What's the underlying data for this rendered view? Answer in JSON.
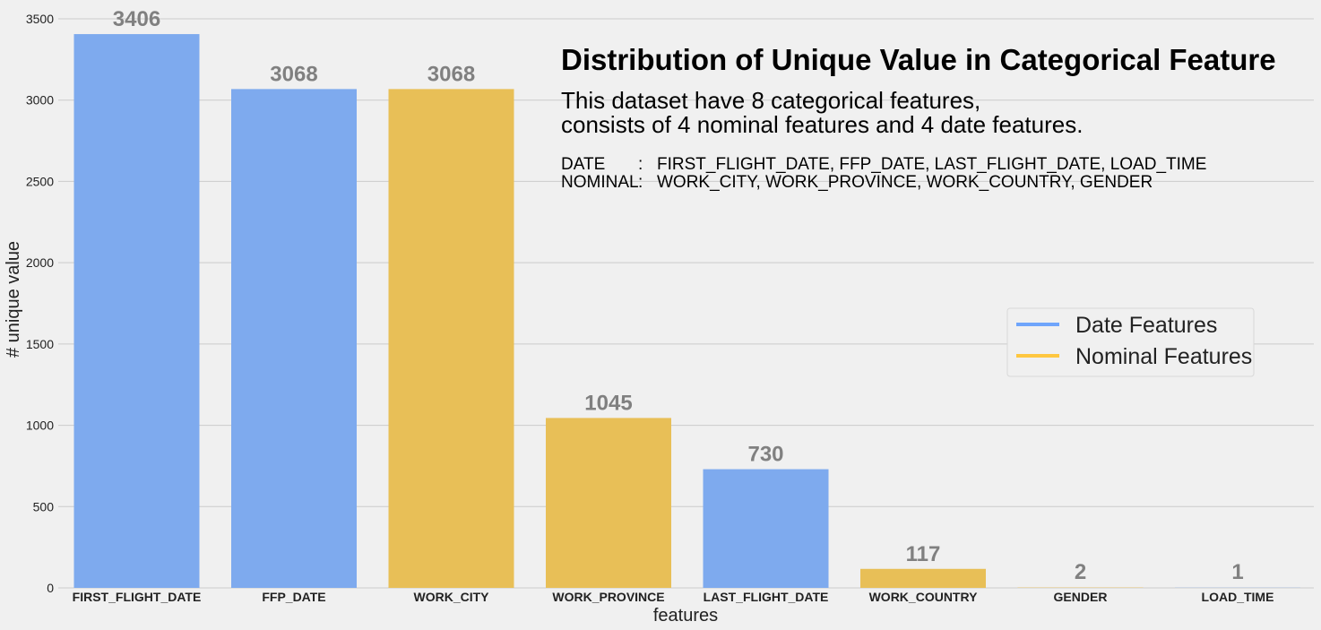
{
  "chart_data": {
    "type": "bar",
    "title": "Distribution of Unique Value in Categorical Feature",
    "subtitle_lines": [
      "This dataset have 8 categorical features,",
      "consists of 4 nominal features and 4 date features."
    ],
    "notes": [
      {
        "key": "DATE",
        "sep": ":",
        "value": "FIRST_FLIGHT_DATE, FFP_DATE, LAST_FLIGHT_DATE, LOAD_TIME"
      },
      {
        "key": "NOMINAL",
        "sep": ":",
        "value": "WORK_CITY, WORK_PROVINCE, WORK_COUNTRY, GENDER"
      }
    ],
    "xlabel": "features",
    "ylabel": "# unique value",
    "ylim": [
      0,
      3500
    ],
    "yticks": [
      0,
      500,
      1000,
      1500,
      2000,
      2500,
      3000,
      3500
    ],
    "grid": "y",
    "legend_placement": "center-right",
    "categories": [
      "FIRST_FLIGHT_DATE",
      "FFP_DATE",
      "WORK_CITY",
      "WORK_PROVINCE",
      "LAST_FLIGHT_DATE",
      "WORK_COUNTRY",
      "GENDER",
      "LOAD_TIME"
    ],
    "values": [
      3406,
      3068,
      3068,
      1045,
      730,
      117,
      2,
      1
    ],
    "groups": [
      "date",
      "date",
      "nominal",
      "nominal",
      "date",
      "nominal",
      "nominal",
      "date"
    ],
    "legend": [
      {
        "group": "date",
        "label": "Date Features",
        "color": "#7eaaee"
      },
      {
        "group": "nominal",
        "label": "Nominal Features",
        "color": "#e8bf57"
      }
    ],
    "legend_line_colors": {
      "date": "#6fa5fb",
      "nominal": "#fec740"
    }
  }
}
